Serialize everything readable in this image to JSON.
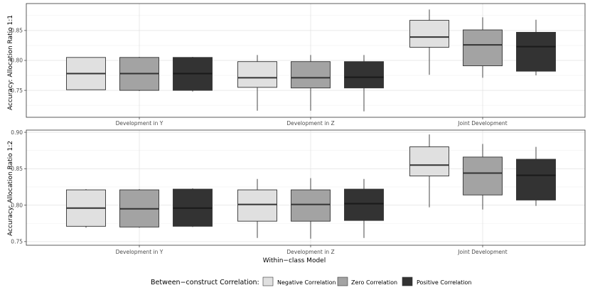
{
  "chart_data": {
    "type": "boxplot",
    "xlabel": "Within−class Model",
    "categories": [
      "Development in Y",
      "Development in Z",
      "Joint Development"
    ],
    "series_names": [
      "Negative Correlation",
      "Zero Correlation",
      "Positive Correlation"
    ],
    "series_colors": [
      "#e0e0e0",
      "#a3a3a3",
      "#333333"
    ],
    "legend": {
      "title": "Between−construct Correlation:",
      "items": [
        "Negative Correlation",
        "Zero Correlation",
        "Positive Correlation"
      ],
      "position": "bottom"
    },
    "panels": [
      {
        "ylabel": "Accuracy: Allocation Ratio 1:1",
        "ylim": [
          0.705,
          0.895
        ],
        "yticks": [
          0.75,
          0.8,
          0.85
        ],
        "ytick_labels": [
          "0.75",
          "0.80",
          "0.85"
        ],
        "boxes": [
          [
            {
              "min": 0.751,
              "q1": 0.751,
              "median": 0.778,
              "q3": 0.805,
              "max": 0.805
            },
            {
              "min": 0.749,
              "q1": 0.75,
              "median": 0.778,
              "q3": 0.805,
              "max": 0.806
            },
            {
              "min": 0.748,
              "q1": 0.75,
              "median": 0.778,
              "q3": 0.805,
              "max": 0.806
            }
          ],
          [
            {
              "min": 0.716,
              "q1": 0.755,
              "median": 0.771,
              "q3": 0.798,
              "max": 0.809
            },
            {
              "min": 0.716,
              "q1": 0.754,
              "median": 0.771,
              "q3": 0.798,
              "max": 0.809
            },
            {
              "min": 0.715,
              "q1": 0.754,
              "median": 0.772,
              "q3": 0.798,
              "max": 0.809
            }
          ],
          [
            {
              "min": 0.776,
              "q1": 0.822,
              "median": 0.839,
              "q3": 0.867,
              "max": 0.885
            },
            {
              "min": 0.771,
              "q1": 0.791,
              "median": 0.826,
              "q3": 0.851,
              "max": 0.872
            },
            {
              "min": 0.775,
              "q1": 0.782,
              "median": 0.823,
              "q3": 0.847,
              "max": 0.868
            }
          ]
        ]
      },
      {
        "ylabel": "Accuracy: Allocation Ratio 1:2",
        "ylim": [
          0.745,
          0.903
        ],
        "yticks": [
          0.75,
          0.8,
          0.85,
          0.9
        ],
        "ytick_labels": [
          "0.75",
          "0.80",
          "0.85",
          "0.90"
        ],
        "boxes": [
          [
            {
              "min": 0.769,
              "q1": 0.771,
              "median": 0.796,
              "q3": 0.821,
              "max": 0.822
            },
            {
              "min": 0.769,
              "q1": 0.77,
              "median": 0.795,
              "q3": 0.821,
              "max": 0.822
            },
            {
              "min": 0.77,
              "q1": 0.771,
              "median": 0.796,
              "q3": 0.822,
              "max": 0.823
            }
          ],
          [
            {
              "min": 0.755,
              "q1": 0.778,
              "median": 0.801,
              "q3": 0.821,
              "max": 0.836
            },
            {
              "min": 0.754,
              "q1": 0.778,
              "median": 0.801,
              "q3": 0.821,
              "max": 0.837
            },
            {
              "min": 0.755,
              "q1": 0.779,
              "median": 0.802,
              "q3": 0.822,
              "max": 0.836
            }
          ],
          [
            {
              "min": 0.797,
              "q1": 0.84,
              "median": 0.855,
              "q3": 0.88,
              "max": 0.897
            },
            {
              "min": 0.794,
              "q1": 0.814,
              "median": 0.844,
              "q3": 0.866,
              "max": 0.884
            },
            {
              "min": 0.799,
              "q1": 0.807,
              "median": 0.841,
              "q3": 0.863,
              "max": 0.88
            }
          ]
        ]
      }
    ]
  }
}
